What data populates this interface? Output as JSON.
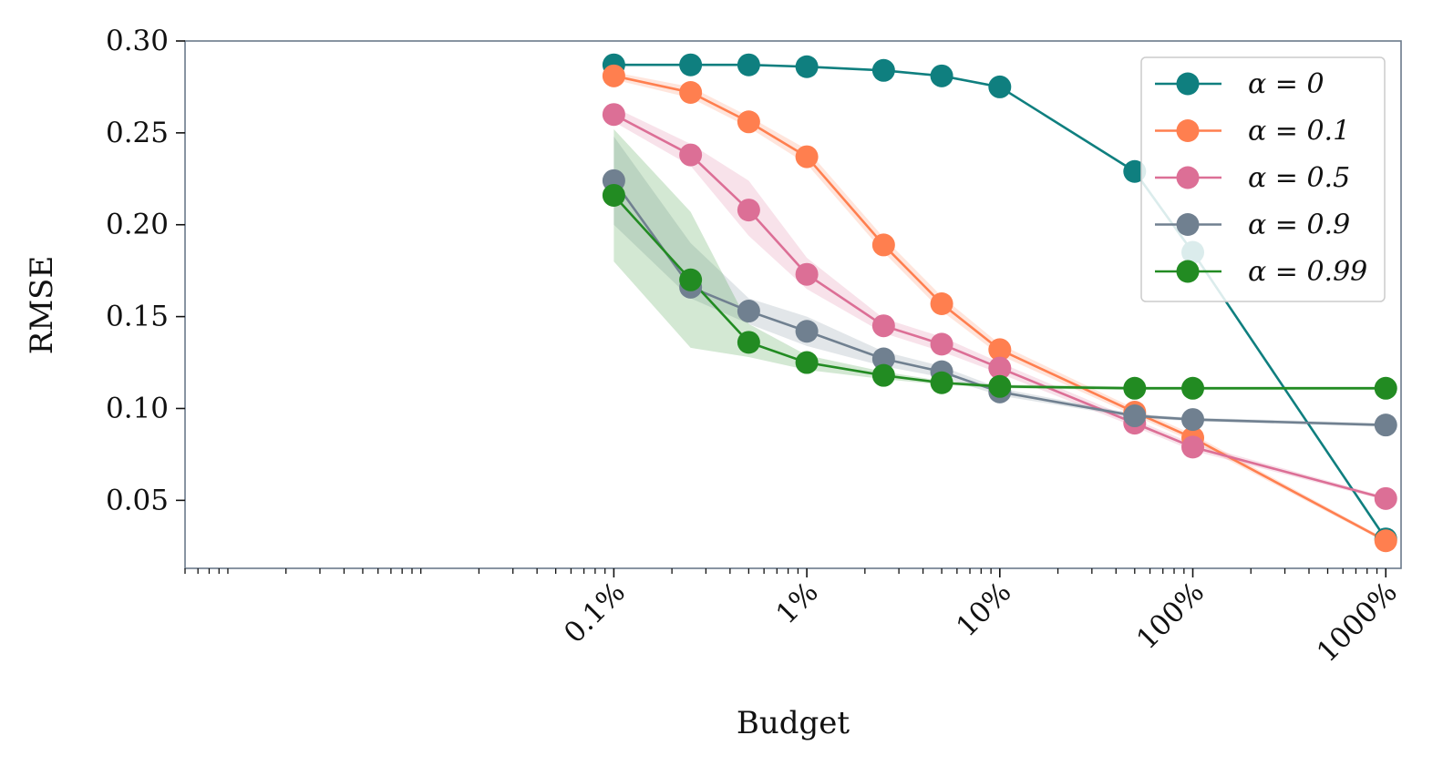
{
  "chart_data": {
    "type": "line",
    "xlabel": "Budget",
    "ylabel": "RMSE",
    "xscale": "log",
    "xlim": [
      0.0006,
      1200
    ],
    "ylim": [
      0.013,
      0.3
    ],
    "x_ticks": [
      0.1,
      1,
      10,
      100,
      1000
    ],
    "x_tick_labels": [
      "0.1%",
      "1%",
      "10%",
      "100%",
      "1000%"
    ],
    "y_ticks": [
      0.05,
      0.1,
      0.15,
      0.2,
      0.25,
      0.3
    ],
    "y_tick_labels": [
      "0.05",
      "0.10",
      "0.15",
      "0.20",
      "0.25",
      "0.30"
    ],
    "grid": false,
    "legend_position": "top-right",
    "x": [
      0.1,
      0.25,
      0.5,
      1,
      2.5,
      5,
      10,
      50,
      100,
      1000
    ],
    "series": [
      {
        "name": "α = 0",
        "color": "#0f7f7f",
        "values": [
          0.287,
          0.287,
          0.287,
          0.286,
          0.284,
          0.281,
          0.275,
          0.229,
          0.185,
          0.029
        ]
      },
      {
        "name": "α = 0.1",
        "color": "#ff7f4f",
        "values": [
          0.281,
          0.272,
          0.256,
          0.237,
          0.189,
          0.157,
          0.132,
          0.098,
          0.084,
          0.028
        ],
        "band_low": [
          0.279,
          0.269,
          0.253,
          0.233,
          0.185,
          0.153,
          0.129,
          0.096,
          0.082,
          0.027
        ],
        "band_high": [
          0.283,
          0.275,
          0.259,
          0.241,
          0.193,
          0.161,
          0.135,
          0.1,
          0.086,
          0.029
        ]
      },
      {
        "name": "α = 0.5",
        "color": "#dc6f96",
        "values": [
          0.26,
          0.238,
          0.208,
          0.173,
          0.145,
          0.135,
          0.122,
          0.092,
          0.079,
          0.051
        ],
        "band_low": [
          0.256,
          0.232,
          0.194,
          0.165,
          0.141,
          0.131,
          0.119,
          0.09,
          0.077,
          0.05
        ],
        "band_high": [
          0.264,
          0.244,
          0.224,
          0.182,
          0.149,
          0.139,
          0.125,
          0.094,
          0.081,
          0.052
        ]
      },
      {
        "name": "α = 0.9",
        "color": "#708090",
        "values": [
          0.224,
          0.166,
          0.153,
          0.142,
          0.127,
          0.12,
          0.109,
          0.096,
          0.094,
          0.091
        ],
        "band_low": [
          0.2,
          0.16,
          0.146,
          0.134,
          0.123,
          0.117,
          0.107,
          0.095,
          0.093,
          0.09
        ],
        "band_high": [
          0.248,
          0.19,
          0.16,
          0.15,
          0.131,
          0.123,
          0.111,
          0.097,
          0.095,
          0.092
        ]
      },
      {
        "name": "α = 0.99",
        "color": "#228b22",
        "values": [
          0.216,
          0.17,
          0.136,
          0.125,
          0.118,
          0.114,
          0.112,
          0.111,
          0.111,
          0.111
        ],
        "band_low": [
          0.18,
          0.133,
          0.128,
          0.121,
          0.116,
          0.113,
          0.111,
          0.11,
          0.11,
          0.11
        ],
        "band_high": [
          0.252,
          0.207,
          0.146,
          0.129,
          0.12,
          0.115,
          0.113,
          0.112,
          0.112,
          0.112
        ]
      }
    ]
  }
}
